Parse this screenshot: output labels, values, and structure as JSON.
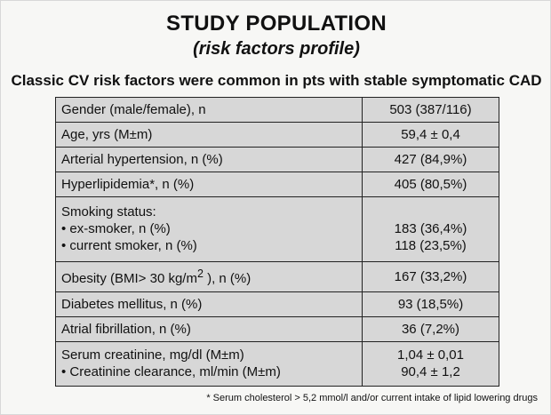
{
  "header": {
    "title": "STUDY POPULATION",
    "subtitle": "(risk factors profile)",
    "headline": "Classic CV risk factors were common in pts with stable symptomatic CAD"
  },
  "table": {
    "rows": [
      {
        "label": "Gender (male/female), n",
        "value": "503 (387/116)"
      },
      {
        "label": "Age, yrs (M±m)",
        "value": "59,4 ± 0,4"
      },
      {
        "label": "Arterial hypertension, n (%)",
        "value": "427 (84,9%)"
      },
      {
        "label": "Hyperlipidemia*, n (%)",
        "value": "405 (80,5%)"
      },
      {
        "label": "Smoking status:",
        "sub": [
          {
            "label": "• ex-smoker, n (%)",
            "value": "183 (36,4%)"
          },
          {
            "label": "• current smoker, n (%)",
            "value": "118 (23,5%)"
          }
        ]
      },
      {
        "label_pre": "Obesity (BMI> 30 kg/m",
        "label_sup": "2",
        "label_post": " ), n (%)",
        "value": "167 (33,2%)"
      },
      {
        "label": "Diabetes mellitus, n (%)",
        "value": "93 (18,5%)"
      },
      {
        "label": "Atrial fibrillation, n (%)",
        "value": "36 (7,2%)"
      },
      {
        "lines": [
          {
            "label": "Serum creatinine, mg/dl (M±m)",
            "value": "1,04 ± 0,01"
          },
          {
            "label": "• Creatinine clearance, ml/min (M±m)",
            "value": "90,4 ± 1,2"
          }
        ]
      }
    ]
  },
  "footnote": "* Serum cholesterol > 5,2 mmol/l and/or current intake of lipid lowering drugs"
}
